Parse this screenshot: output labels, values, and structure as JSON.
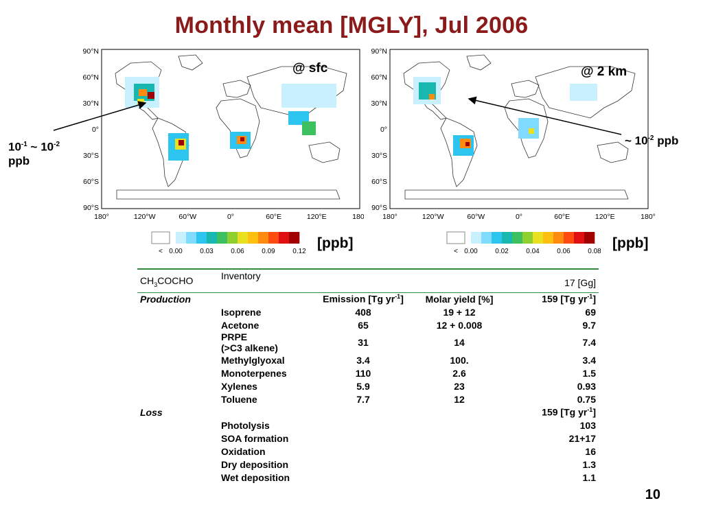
{
  "slide": {
    "title": "Monthly mean [MGLY], Jul 2006",
    "page_number": "10"
  },
  "map_left": {
    "label": "@ sfc",
    "lat_labels": [
      "90°N",
      "60°N",
      "30°N",
      "0°",
      "30°S",
      "60°S",
      "90°S"
    ],
    "lon_labels": [
      "180°",
      "120°W",
      "60°W",
      "0°",
      "60°E",
      "120°E",
      "180°"
    ],
    "annotation_line1": "10",
    "annotation_sup1": "-1",
    "annotation_mid": " ~ 10",
    "annotation_sup2": "-2",
    "annotation_line2": "ppb",
    "colorbar_ticks": [
      "<",
      "0.00",
      "0.03",
      "0.06",
      "0.09",
      "0.12"
    ],
    "unit": "[ppb]"
  },
  "map_right": {
    "label": "@ 2 km",
    "lat_labels": [
      "90°N",
      "60°N",
      "30°N",
      "0°",
      "30°S",
      "60°S",
      "90°S"
    ],
    "lon_labels": [
      "180°",
      "120°W",
      "60°W",
      "0°",
      "60°E",
      "120°E",
      "180°"
    ],
    "annotation_pre": "~ 10",
    "annotation_sup": "-2",
    "annotation_post": " ppb",
    "colorbar_ticks": [
      "<",
      "0.00",
      "0.02",
      "0.04",
      "0.06",
      "0.08"
    ],
    "unit": "[ppb]"
  },
  "colors": {
    "title": "#8b1a1a",
    "colorbar": [
      "#c8f0ff",
      "#7fdcff",
      "#2ec4f0",
      "#18b8b0",
      "#3cc060",
      "#8fd030",
      "#e8e020",
      "#ffbf10",
      "#ff8a10",
      "#ff4a10",
      "#e01010",
      "#a00000"
    ],
    "table_rule": "#2f8f3f"
  },
  "table": {
    "species_main": "CH",
    "species_sub1": "3",
    "species_mid": "COCHO",
    "inventory_label": "Inventory",
    "inventory_value": "17 [Gg]",
    "production_label": "Production",
    "emission_header": "Emission [Tg yr",
    "emission_header_sup": "-1",
    "emission_header_end": "]",
    "yield_header": "Molar yield [%]",
    "production_total": "159 [Tg yr",
    "production_total_sup": "-1",
    "production_total_end": "]",
    "production_rows": [
      {
        "name": "Isoprene",
        "emission": "408",
        "yield": "19 + 12",
        "value": "69"
      },
      {
        "name": "Acetone",
        "emission": "65",
        "yield": "12 + 0.008",
        "value": "9.7"
      },
      {
        "name": "PRPE",
        "name2": "(>C3 alkene)",
        "emission": "31",
        "yield": "14",
        "value": "7.4"
      },
      {
        "name": "Methylglyoxal",
        "emission": "3.4",
        "yield": "100.",
        "value": "3.4"
      },
      {
        "name": "Monoterpenes",
        "emission": "110",
        "yield": "2.6",
        "value": "1.5"
      },
      {
        "name": "Xylenes",
        "emission": "5.9",
        "yield": "23",
        "value": "0.93"
      },
      {
        "name": "Toluene",
        "emission": "7.7",
        "yield": "12",
        "value": "0.75"
      }
    ],
    "loss_label": "Loss",
    "loss_total": "159 [Tg yr",
    "loss_total_sup": "-1",
    "loss_total_end": "]",
    "loss_rows": [
      {
        "name": "Photolysis",
        "value": "103"
      },
      {
        "name": "SOA formation",
        "value": "21+17"
      },
      {
        "name": "Oxidation",
        "value": "16"
      },
      {
        "name": "Dry deposition",
        "value": "1.3"
      },
      {
        "name": "Wet deposition",
        "value": "1.1"
      }
    ]
  }
}
